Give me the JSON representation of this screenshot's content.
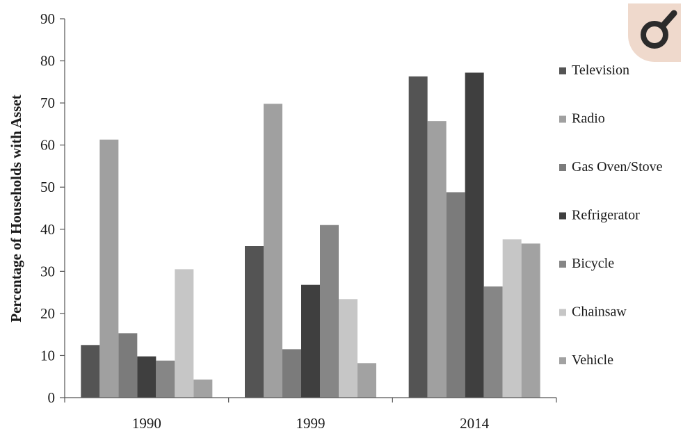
{
  "chart_data": {
    "type": "bar",
    "categories": [
      "1990",
      "1999",
      "2014"
    ],
    "ylabel": "Percentage of Households with Asset",
    "xlabel": "",
    "ylim": [
      0,
      90
    ],
    "yticks": [
      0,
      10,
      20,
      30,
      40,
      50,
      60,
      70,
      80,
      90
    ],
    "grid": false,
    "legend_position": "right",
    "series": [
      {
        "name": "Television",
        "color": "#545454",
        "values": [
          12.5,
          36,
          76.3
        ]
      },
      {
        "name": "Radio",
        "color": "#a0a0a0",
        "values": [
          61.3,
          69.8,
          65.7
        ]
      },
      {
        "name": "Gas Oven/Stove",
        "color": "#7b7b7b",
        "values": [
          15.3,
          11.5,
          48.8
        ]
      },
      {
        "name": "Refrigerator",
        "color": "#3f3f3f",
        "values": [
          9.8,
          26.8,
          77.2
        ]
      },
      {
        "name": "Bicycle",
        "color": "#868686",
        "values": [
          8.8,
          41,
          26.4
        ]
      },
      {
        "name": "Chainsaw",
        "color": "#c6c6c6",
        "values": [
          30.5,
          23.4,
          37.6
        ]
      },
      {
        "name": "Vehicle",
        "color": "#a2a2a2",
        "values": [
          4.3,
          8.2,
          36.6
        ]
      }
    ]
  },
  "corner_badge": {
    "icon": "lens-icon",
    "color": "#efd9cc"
  }
}
